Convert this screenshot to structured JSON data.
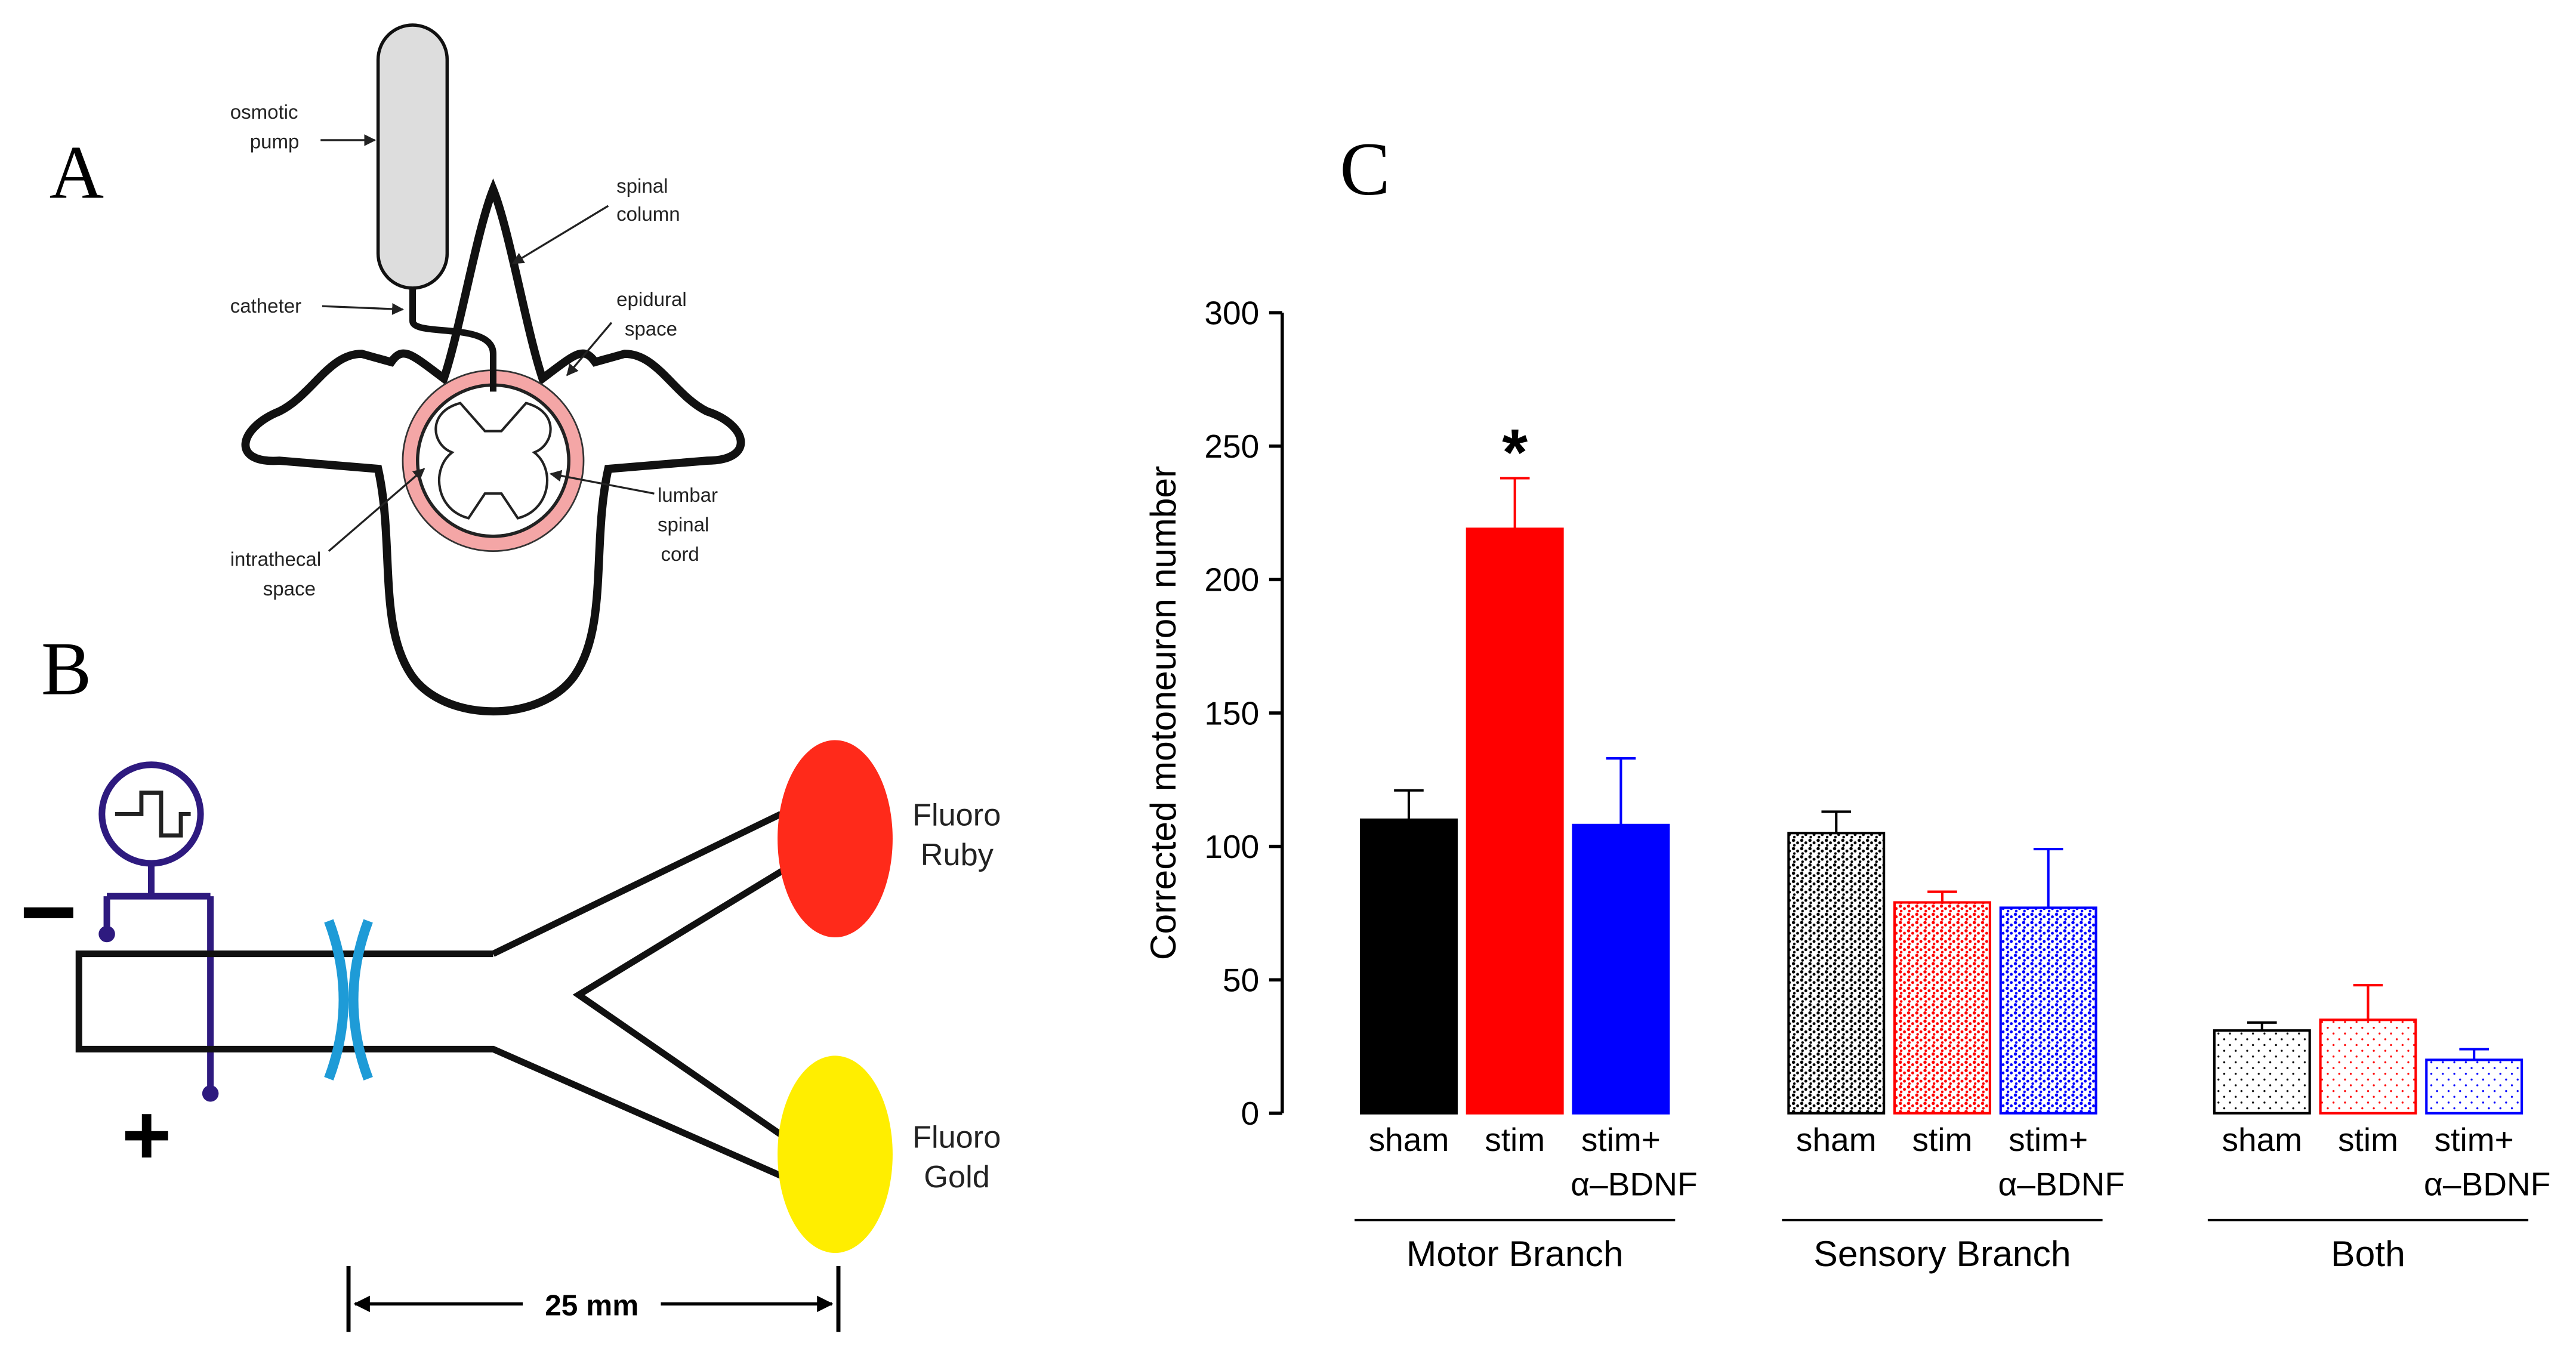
{
  "panel_a": {
    "letter": "A",
    "labels": [
      [
        "osmotic",
        "pump"
      ],
      [
        "spinal",
        "column"
      ],
      [
        "catheter"
      ],
      [
        "epidural",
        "space"
      ],
      [
        "lumbar",
        "spinal",
        "cord"
      ],
      [
        "intrathecal",
        "space"
      ]
    ]
  },
  "panel_b": {
    "letter": "B",
    "labels": [
      [
        "Fluoro",
        "Ruby"
      ],
      [
        "Fluoro",
        "Gold"
      ]
    ],
    "minus": "−",
    "plus": "+",
    "scale": "25 mm"
  },
  "chart_data": {
    "type": "bar",
    "letter": "C",
    "ylabel": "Corrected motoneuron number",
    "ylim": [
      0,
      300
    ],
    "yticks": [
      0,
      50,
      100,
      150,
      200,
      250,
      300
    ],
    "groups": [
      {
        "name": "Motor Branch",
        "bars": [
          {
            "label": [
              "sham"
            ],
            "value": 110,
            "error": 11,
            "color": "#000000",
            "fill": "solid"
          },
          {
            "label": [
              "stim"
            ],
            "value": 219,
            "error": 19,
            "color": "#ff0000",
            "fill": "solid"
          },
          {
            "label": [
              "stim+",
              "α–BDNF"
            ],
            "value": 108,
            "error": 25,
            "color": "#0000ff",
            "fill": "solid"
          }
        ]
      },
      {
        "name": "Sensory Branch",
        "bars": [
          {
            "label": [
              "sham"
            ],
            "value": 105,
            "error": 8,
            "color": "#000000",
            "fill": "speckle"
          },
          {
            "label": [
              "stim"
            ],
            "value": 79,
            "error": 4,
            "color": "#ff0000",
            "fill": "speckle"
          },
          {
            "label": [
              "stim+",
              "α–BDNF"
            ],
            "value": 77,
            "error": 22,
            "color": "#0000ff",
            "fill": "speckle"
          }
        ]
      },
      {
        "name": "Both",
        "bars": [
          {
            "label": [
              "sham"
            ],
            "value": 31,
            "error": 3,
            "color": "#000000",
            "fill": "dots"
          },
          {
            "label": [
              "stim"
            ],
            "value": 35,
            "error": 13,
            "color": "#ff0000",
            "fill": "dots"
          },
          {
            "label": [
              "stim+",
              "α–BDNF"
            ],
            "value": 20,
            "error": 4,
            "color": "#0000ff",
            "fill": "dots"
          }
        ]
      }
    ],
    "annotations": [
      {
        "text": "*",
        "group": 0,
        "bar": 1
      }
    ]
  }
}
